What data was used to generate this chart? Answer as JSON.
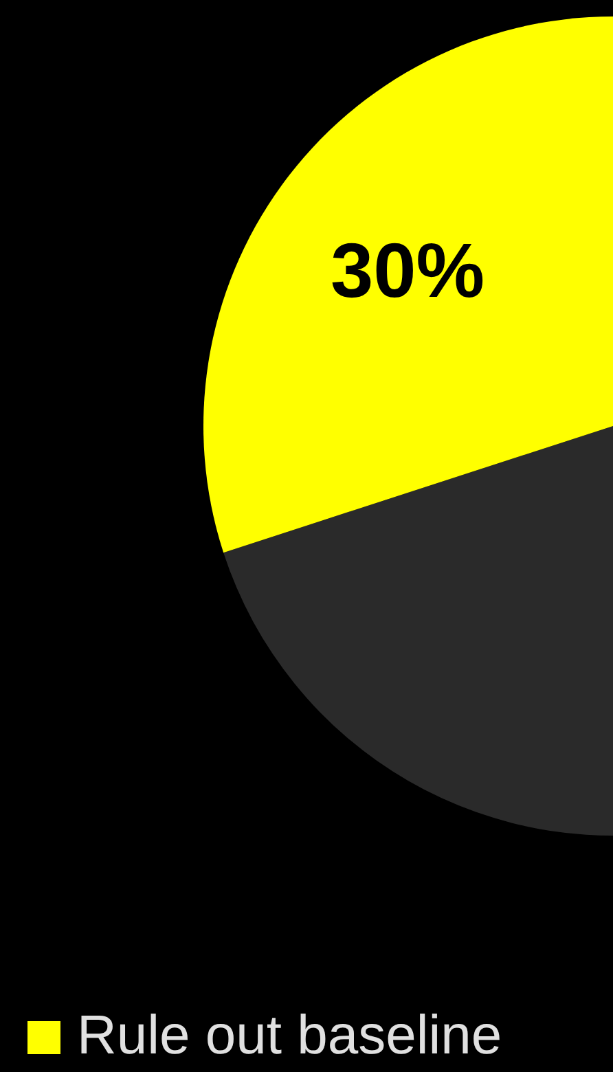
{
  "chart_data": {
    "type": "pie",
    "categories": [
      null,
      "Rule out baseline"
    ],
    "values": [
      70,
      30
    ],
    "colors": [
      "#2a2a2a",
      "#ffff00"
    ],
    "value_labels": [
      null,
      "30%"
    ],
    "legend": "bottom"
  }
}
